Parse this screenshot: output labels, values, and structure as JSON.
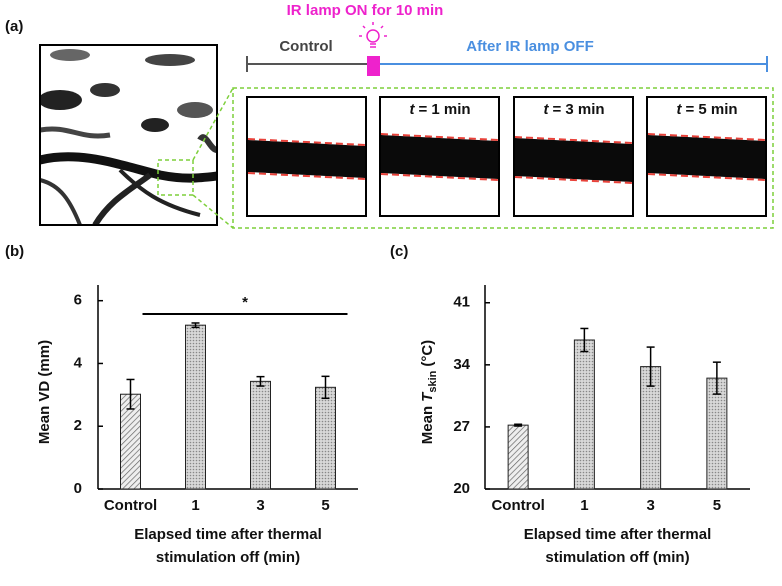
{
  "panel_a": {
    "label": "(a)",
    "lamp_label": "IR lamp ON for 10 min",
    "timeline": [
      "Control",
      "After IR lamp OFF"
    ],
    "frames": [
      {
        "symbol": "t",
        "text": "= 1 min"
      },
      {
        "symbol": "t",
        "text": "= 3 min"
      },
      {
        "symbol": "t",
        "text": "= 5 min"
      }
    ]
  },
  "chart_data": [
    {
      "type": "bar",
      "panel_label": "(b)",
      "ylabel": "Mean VD (mm)",
      "xlabel_lines": [
        "Elapsed time after thermal",
        "stimulation off (min)"
      ],
      "categories": [
        "Control",
        "1",
        "3",
        "5"
      ],
      "values": [
        3.02,
        5.22,
        3.43,
        3.24
      ],
      "errors": [
        0.47,
        0.07,
        0.15,
        0.35
      ],
      "patterns": [
        "diagonal",
        "dots",
        "dots",
        "dots"
      ],
      "ylim": [
        0,
        6.5
      ],
      "yticks": [
        0,
        2,
        4,
        6
      ],
      "significance": "*"
    },
    {
      "type": "bar",
      "panel_label": "(c)",
      "ylabel": "Mean",
      "ylabel_symbol": "T",
      "ylabel_subscript": "skin",
      "ylabel_unit": "(°C)",
      "xlabel_lines": [
        "Elapsed time after thermal",
        "stimulation off (min)"
      ],
      "categories": [
        "Control",
        "1",
        "3",
        "5"
      ],
      "values": [
        27.2,
        36.8,
        33.8,
        32.5
      ],
      "errors": [
        0.1,
        1.3,
        2.2,
        1.8
      ],
      "patterns": [
        "diagonal",
        "dots",
        "dots",
        "dots"
      ],
      "ylim": [
        20,
        43
      ],
      "yticks": [
        20,
        27,
        34,
        41
      ]
    }
  ]
}
